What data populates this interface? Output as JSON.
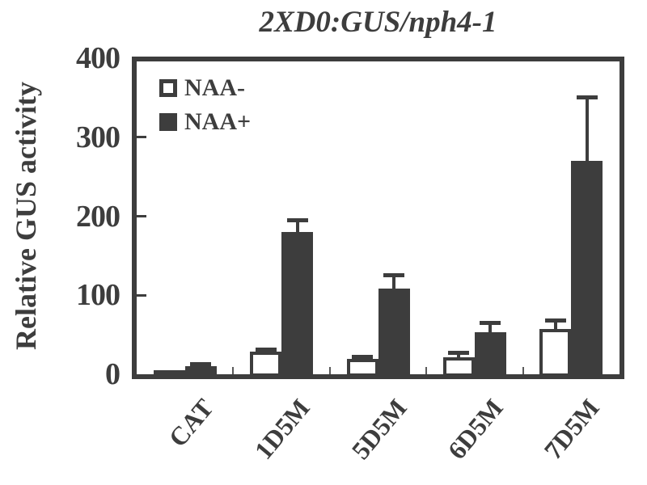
{
  "figure": {
    "title": "2XD0:GUS/nph4-1",
    "ylabel": "Relative GUS activity"
  },
  "colors": {
    "ink": "#3d3d3d",
    "background": "#ffffff",
    "bar_fill_dark": "#3d3d3d",
    "bar_fill_light": "#ffffff"
  },
  "chart_data": {
    "type": "bar",
    "title": "2XD0:GUS/nph4-1",
    "xlabel": "",
    "ylabel": "Relative GUS activity",
    "categories": [
      "CAT",
      "1D5M",
      "5D5M",
      "6D5M",
      "7D5M"
    ],
    "series": [
      {
        "name": "NAA-",
        "style": "white",
        "values": [
          5,
          29,
          19,
          21,
          57
        ],
        "errors": [
          null,
          5,
          6,
          9,
          14
        ]
      },
      {
        "name": "NAA+",
        "style": "dark",
        "values": [
          10,
          180,
          108,
          53,
          270
        ],
        "errors": [
          5,
          17,
          20,
          15,
          83
        ]
      }
    ],
    "ylim": [
      0,
      400
    ],
    "yticks": [
      0,
      100,
      200,
      300,
      400
    ],
    "grid": false,
    "error_bars": true,
    "legend_position": "inside top-left"
  }
}
